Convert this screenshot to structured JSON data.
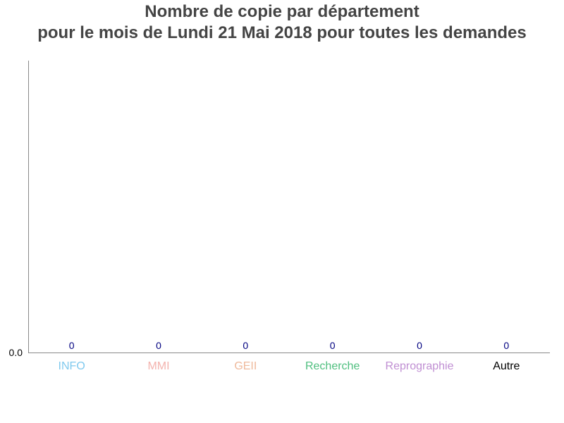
{
  "chart_data": {
    "type": "bar",
    "title_lines": [
      "Nombre de copie par département",
      "pour le mois de Lundi 21 Mai 2018 pour toutes les demandes"
    ],
    "categories": [
      "INFO",
      "MMI",
      "GEII",
      "Recherche",
      "Reprographie",
      "Autre"
    ],
    "category_colors": [
      "#7fc9ee",
      "#f4b3ae",
      "#efb99b",
      "#4fbf7f",
      "#c08fd3",
      "#000000"
    ],
    "values": [
      0,
      0,
      0,
      0,
      0,
      0
    ],
    "data_label_color": "#000080",
    "y_tick_labels": [
      "0.0"
    ],
    "ylim": [
      0,
      1
    ],
    "grid": false
  }
}
